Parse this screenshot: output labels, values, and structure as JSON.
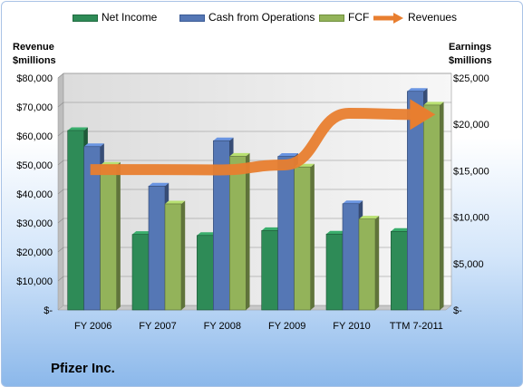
{
  "chart_data": {
    "type": "bar",
    "categories": [
      "FY 2006",
      "FY 2007",
      "FY 2008",
      "FY 2009",
      "FY 2010",
      "TTM 7-2011"
    ],
    "series": [
      {
        "name": "Net Income",
        "axis": "right",
        "color": "#2e8b57",
        "values": [
          19340,
          8140,
          8030,
          8560,
          8180,
          8470
        ]
      },
      {
        "name": "Cash from Operations",
        "axis": "right",
        "color": "#5577b5",
        "values": [
          17600,
          13350,
          18240,
          16550,
          11450,
          23560
        ]
      },
      {
        "name": "FCF",
        "axis": "right",
        "color": "#93b35a",
        "values": [
          15600,
          11430,
          16560,
          15410,
          9800,
          22080
        ]
      },
      {
        "name": "Revenues",
        "axis": "left",
        "type": "line",
        "color": "#e87e2f",
        "values": [
          48400,
          48400,
          48300,
          50000,
          67800,
          67400
        ]
      }
    ],
    "ylabel_left": "Revenue\n$millions",
    "ylabel_right": "Earnings\n$millions",
    "ylim_left": [
      0,
      80000
    ],
    "ylim_right": [
      0,
      25000
    ],
    "yticks_left": [
      "$80,000",
      "$70,000",
      "$60,000",
      "$50,000",
      "$40,000",
      "$30,000",
      "$20,000",
      "$10,000",
      "$-"
    ],
    "yticks_right": [
      "$25,000",
      "$20,000",
      "$15,000",
      "$10,000",
      "$5,000",
      "$-"
    ],
    "grid": true,
    "legend_position": "top"
  },
  "footer": {
    "company": "Pfizer Inc."
  }
}
